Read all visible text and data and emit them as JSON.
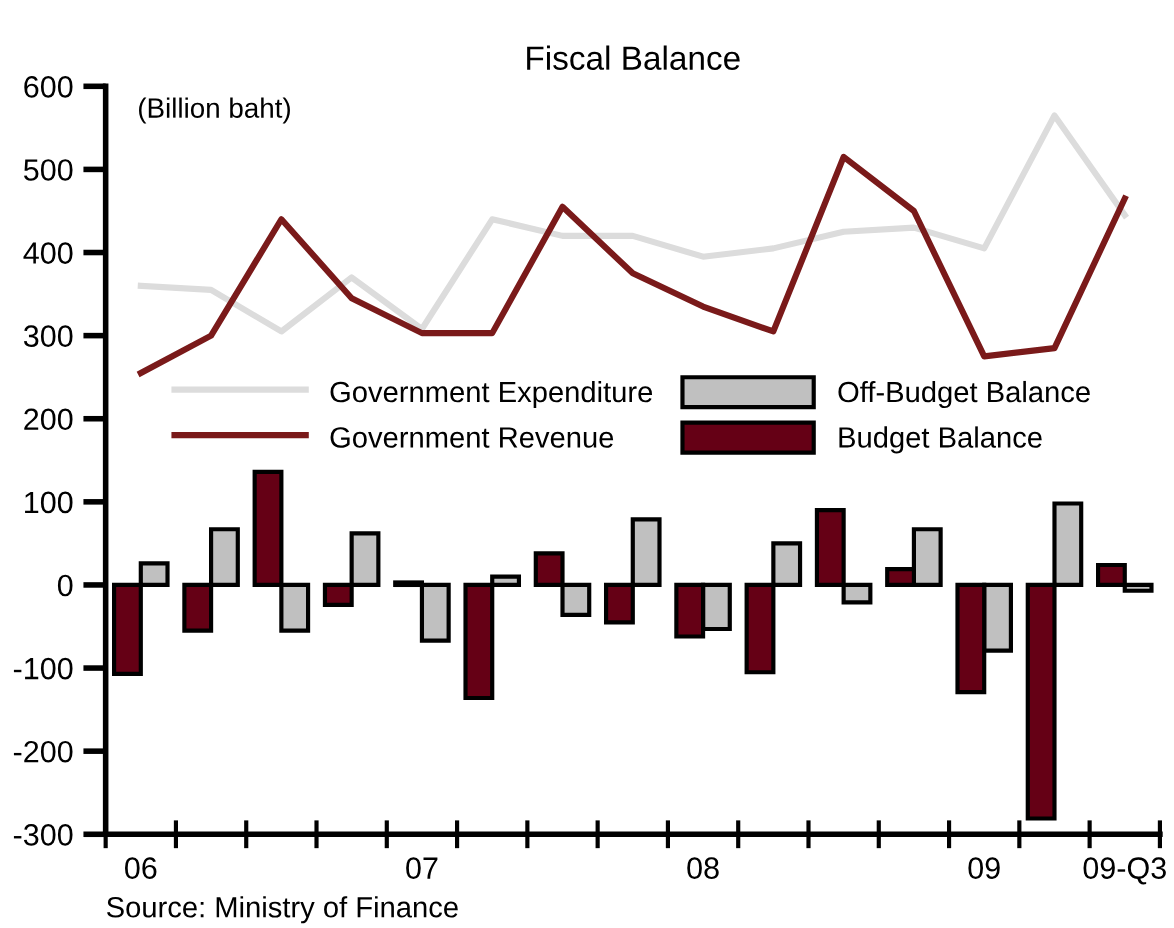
{
  "chart_data": {
    "type": "bar",
    "title": "Fiscal Balance",
    "categories": [
      "06",
      null,
      null,
      null,
      "07",
      null,
      null,
      null,
      "08",
      null,
      null,
      null,
      "09",
      null,
      "09-Q3"
    ],
    "series": [
      {
        "name": "Government Expenditure",
        "type": "line",
        "color": "#dcdcdc",
        "values": [
          360,
          355,
          305,
          370,
          308,
          440,
          420,
          420,
          395,
          405,
          425,
          430,
          405,
          565,
          445
        ]
      },
      {
        "name": "Government Revenue",
        "type": "line",
        "color": "#7a1a1a",
        "values": [
          255,
          300,
          440,
          345,
          303,
          303,
          455,
          375,
          335,
          305,
          515,
          450,
          275,
          285,
          465
        ]
      },
      {
        "name": "Off-Budget Balance",
        "color": "#c0c0c0",
        "values": [
          26,
          67,
          -55,
          62,
          -67,
          10,
          -36,
          79,
          -53,
          50,
          -21,
          67,
          -79,
          98,
          -7
        ]
      },
      {
        "name": "Budget Balance",
        "color": "#650015",
        "values": [
          -107,
          -55,
          136,
          -24,
          3,
          -136,
          38,
          -45,
          -62,
          -105,
          90,
          19,
          -129,
          -281,
          24
        ]
      }
    ],
    "ylim": [
      -300,
      600
    ],
    "yticks": [
      -300,
      -200,
      -100,
      0,
      100,
      200,
      300,
      400,
      500,
      600
    ],
    "grid": false,
    "legend": "center",
    "annotations": [
      "(Billion baht)",
      "Source: Ministry of Finance"
    ]
  }
}
